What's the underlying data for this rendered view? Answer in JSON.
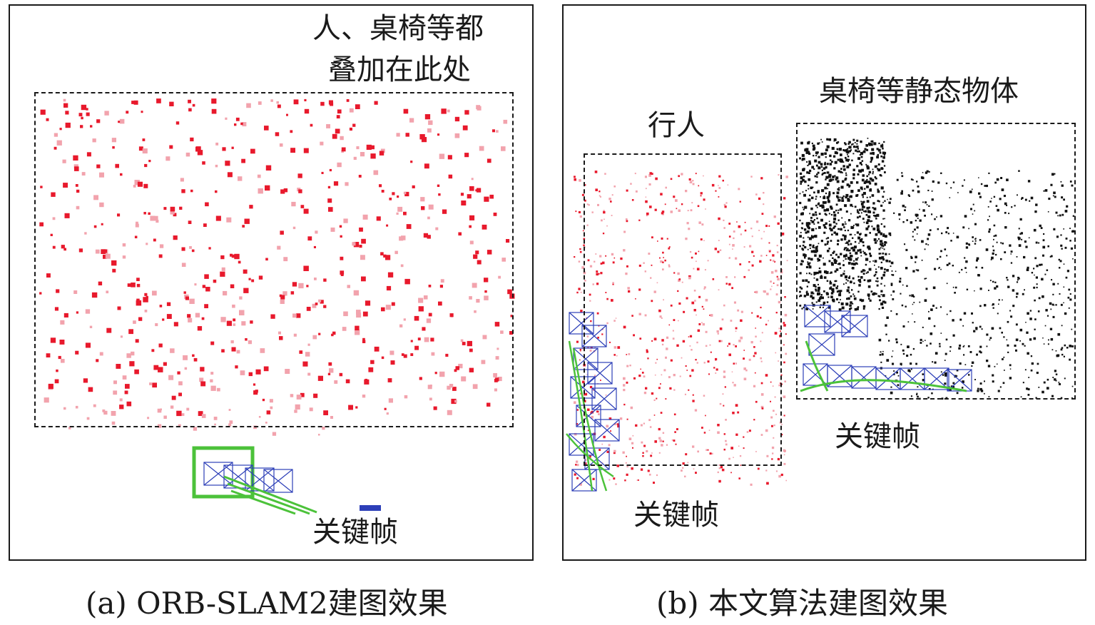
{
  "panel_a": {
    "annotation_line1": "人、桌椅等都",
    "annotation_line2": "叠加在此处",
    "keyframe_label": "关键帧",
    "caption": "(a) ORB-SLAM2建图效果"
  },
  "panel_b": {
    "pedestrian_label": "行人",
    "static_label": "桌椅等静态物体",
    "keyframe_label_right": "关键帧",
    "keyframe_label_bottom": "关键帧",
    "caption": "(b) 本文算法建图效果"
  },
  "colors": {
    "map_point_red": "#e8192c",
    "map_point_pink": "#f2a3ad",
    "map_point_black": "#111111",
    "keyframe_blue": "#2d3fb8",
    "trajectory_green": "#4cc23a",
    "frame_border": "#1a1a1a"
  }
}
